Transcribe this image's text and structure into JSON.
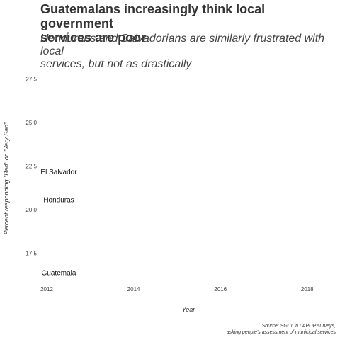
{
  "chart_data": {
    "type": "line",
    "title_lines": [
      "Guatemalans increasingly think local government",
      "services are poor"
    ],
    "subtitle_lines": [
      "Hondurans and Salvadorians are similarly frustrated with local",
      "services, but not as drastically"
    ],
    "xlabel": "Year",
    "ylabel": "Percent responding \"Bad\" or \"Very Bad\"",
    "caption_lines": [
      "Source: SGL1 in LAPOP surveys,",
      "asking people's assessment of municipal services"
    ],
    "x_ticks": [
      2012,
      2014,
      2016,
      2018
    ],
    "y_ticks": [
      "17.5",
      "20.0",
      "22.5",
      "25.0",
      "27.5"
    ],
    "xlim": [
      2012,
      2018.2
    ],
    "ylim": [
      16.1,
      28.3
    ],
    "grid": false,
    "series": [
      {
        "name": "El Salvador",
        "x": [
          2012
        ],
        "y": [
          22.2
        ]
      },
      {
        "name": "Honduras",
        "x": [
          2012
        ],
        "y": [
          20.6
        ]
      },
      {
        "name": "Guatemala",
        "x": [
          2012
        ],
        "y": [
          16.4
        ]
      }
    ]
  }
}
